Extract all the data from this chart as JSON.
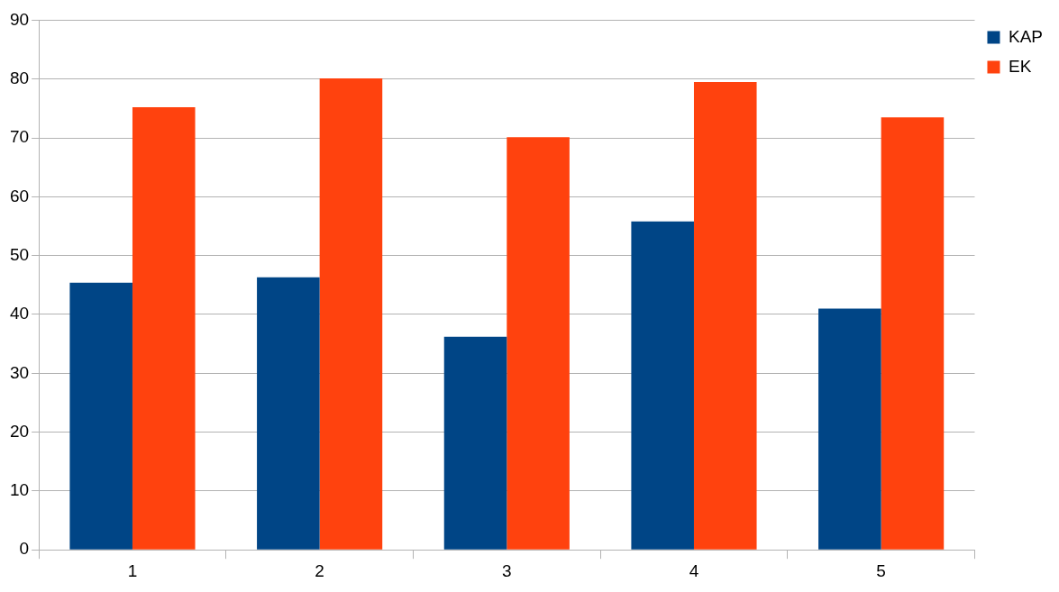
{
  "chart_data": {
    "type": "bar",
    "categories": [
      "1",
      "2",
      "3",
      "4",
      "5"
    ],
    "series": [
      {
        "name": "KAP",
        "color": "#004586",
        "values": [
          45.4,
          46.3,
          36.2,
          55.8,
          41.0
        ]
      },
      {
        "name": "EK",
        "color": "#ff420e",
        "values": [
          75.2,
          80.1,
          70.1,
          79.5,
          73.5
        ]
      }
    ],
    "ylim": [
      0,
      90
    ],
    "yticks": [
      0,
      10,
      20,
      30,
      40,
      50,
      60,
      70,
      80,
      90
    ],
    "grid": "y",
    "legend": "right"
  }
}
